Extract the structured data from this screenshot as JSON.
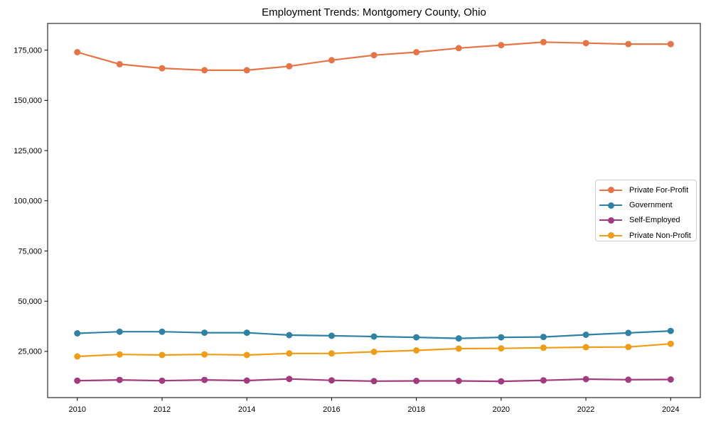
{
  "chart_data": {
    "type": "line",
    "title": "Employment Trends: Montgomery County, Ohio",
    "xlabel": "",
    "ylabel": "",
    "grid": false,
    "legend_position": "center-right",
    "marker": "circle",
    "axis_color": "#000000",
    "xlim": [
      2009.3,
      2024.7
    ],
    "ylim": [
      2000,
      188300
    ],
    "x": [
      2010,
      2011,
      2012,
      2013,
      2014,
      2015,
      2016,
      2017,
      2018,
      2019,
      2020,
      2021,
      2022,
      2023,
      2024
    ],
    "series": [
      {
        "name": "Private For-Profit",
        "color": "#e57446",
        "values": [
          174000,
          168000,
          166000,
          165000,
          165000,
          167000,
          170000,
          172500,
          174000,
          176000,
          177500,
          179000,
          178500,
          178000,
          178000
        ]
      },
      {
        "name": "Government",
        "color": "#2f82a3",
        "values": [
          34000,
          34800,
          34800,
          34300,
          34300,
          33100,
          32800,
          32400,
          32000,
          31500,
          32000,
          32200,
          33300,
          34200,
          35200
        ]
      },
      {
        "name": "Self-Employed",
        "color": "#a23a7e",
        "values": [
          10400,
          10800,
          10400,
          10800,
          10500,
          11300,
          10600,
          10200,
          10300,
          10300,
          10100,
          10600,
          11200,
          10900,
          11000
        ]
      },
      {
        "name": "Private Non-Profit",
        "color": "#f09d16",
        "values": [
          22500,
          23500,
          23200,
          23500,
          23200,
          24000,
          24000,
          24800,
          25500,
          26400,
          26500,
          26800,
          27100,
          27200,
          28800
        ]
      }
    ],
    "x_ticks": [
      {
        "v": 2010,
        "label": "2010"
      },
      {
        "v": 2012,
        "label": "2012"
      },
      {
        "v": 2014,
        "label": "2014"
      },
      {
        "v": 2016,
        "label": "2016"
      },
      {
        "v": 2018,
        "label": "2018"
      },
      {
        "v": 2020,
        "label": "2020"
      },
      {
        "v": 2022,
        "label": "2022"
      },
      {
        "v": 2024,
        "label": "2024"
      }
    ],
    "y_ticks": [
      {
        "v": 25000,
        "label": "25,000"
      },
      {
        "v": 50000,
        "label": "50,000"
      },
      {
        "v": 75000,
        "label": "75,000"
      },
      {
        "v": 100000,
        "label": "100,000"
      },
      {
        "v": 125000,
        "label": "125,000"
      },
      {
        "v": 150000,
        "label": "150,000"
      },
      {
        "v": 175000,
        "label": "175,000"
      }
    ]
  }
}
